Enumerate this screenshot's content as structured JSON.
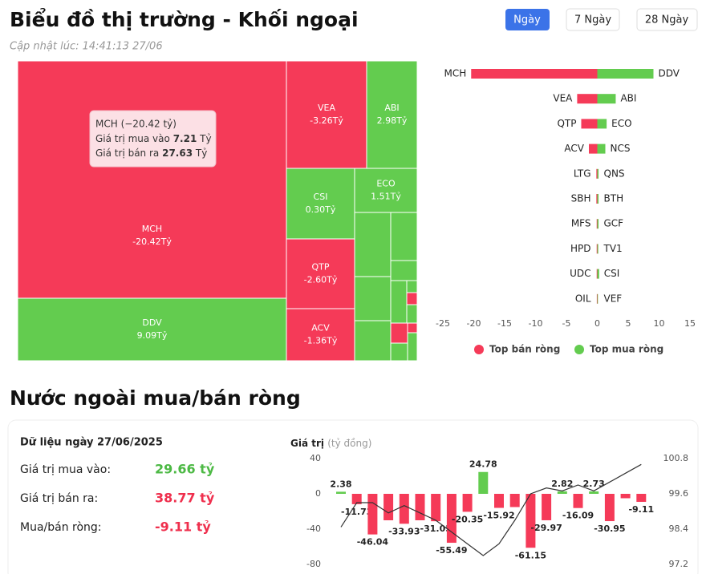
{
  "header": {
    "title": "Biểu đồ thị trường - Khối ngoại",
    "updated": "Cập nhật lúc: 14:41:13 27/06",
    "tabs": [
      "Ngày",
      "7 Ngày",
      "28 Ngày"
    ]
  },
  "chart_data": [
    {
      "type": "treemap",
      "categories": [
        "MCH",
        "DDV",
        "VEA",
        "ABI",
        "CSI",
        "ECO",
        "QTP",
        "ACV"
      ],
      "values": [
        -20.42,
        9.09,
        -3.26,
        2.98,
        0.3,
        1.51,
        -2.6,
        -1.36
      ],
      "value_labels": [
        "-20.42Tỷ",
        "9.09Tỷ",
        "-3.26Tỷ",
        "2.98Tỷ",
        "0.30Tỷ",
        "1.51Tỷ",
        "-2.60Tỷ",
        "-1.36Tỷ"
      ],
      "positive_color": "#63cc4f",
      "negative_color": "#f53a58",
      "tooltip": {
        "title": "MCH (−20.42 tỷ)",
        "rows": [
          {
            "label": "Giá trị mua vào",
            "value": 7.21,
            "unit": "Tỷ"
          },
          {
            "label": "Giá trị bán ra",
            "value": 27.63,
            "unit": "Tỷ"
          }
        ]
      }
    },
    {
      "type": "diverging-bar",
      "xlim": [
        -25,
        15
      ],
      "xticks": [
        -25,
        -20,
        -15,
        -10,
        -5,
        0,
        5,
        10,
        15
      ],
      "series": [
        {
          "name": "Top bán ròng",
          "color": "#f53a58",
          "categories": [
            "MCH",
            "VEA",
            "QTP",
            "ACV",
            "LTG",
            "SBH",
            "MFS",
            "HPD",
            "UDC",
            "OIL"
          ],
          "values": [
            -20.42,
            -3.26,
            -2.6,
            -1.36,
            -0.15,
            -0.15,
            -0.1,
            -0.1,
            -0.1,
            -0.08
          ]
        },
        {
          "name": "Top mua ròng",
          "color": "#63cc4f",
          "categories": [
            "DDV",
            "ABI",
            "ECO",
            "NCS",
            "QNS",
            "BTH",
            "GCF",
            "TV1",
            "CSI",
            "VEF"
          ],
          "values": [
            9.09,
            2.98,
            1.51,
            1.3,
            0.2,
            0.2,
            0.2,
            0.15,
            0.3,
            0.1
          ]
        }
      ]
    },
    {
      "type": "bar-line",
      "title": "Nước ngoài mua/bán ròng",
      "y_label": "Giá trị",
      "y_unit": "(tỷ đồng)",
      "ylim": [
        -80,
        40
      ],
      "yticks": [
        -80,
        -40,
        0,
        40
      ],
      "y2lim": [
        97.2,
        100.8
      ],
      "y2ticks": [
        97.2,
        98.4,
        99.6,
        100.8
      ],
      "categories": [
        null,
        null,
        null,
        null,
        null,
        null,
        null,
        null,
        null,
        null,
        null,
        null,
        null,
        null,
        null,
        null,
        null,
        null,
        null,
        null
      ],
      "series": [
        {
          "type": "bar",
          "positive_color": "#63cc4f",
          "negative_color": "#f53a58",
          "values": [
            2.38,
            -11.73,
            -46.04,
            -30,
            -33.93,
            -30,
            -31.05,
            -55.49,
            -20.35,
            24.78,
            -15.92,
            -15,
            -61.15,
            -29.97,
            2.82,
            -16.09,
            2.73,
            -30.95,
            -5,
            -9.11
          ],
          "value_labels": [
            "2.38",
            "-11.73",
            "-46.04",
            null,
            "-33.93",
            null,
            "-31.05",
            "-55.49",
            "-20.35",
            "24.78",
            "-15.92",
            null,
            "-61.15",
            "-29.97",
            "2.82",
            "-16.09",
            "2.73",
            "-30.95",
            null,
            "-9.11"
          ]
        },
        {
          "type": "line",
          "axis": "y2",
          "color": "#333333",
          "values": [
            98.47,
            99.3,
            99.3,
            98.95,
            99.2,
            98.95,
            98.7,
            98.3,
            97.9,
            97.5,
            97.9,
            98.7,
            99.6,
            99.8,
            99.7,
            99.9,
            99.7,
            100.0,
            100.3,
            100.6
          ]
        }
      ]
    }
  ],
  "summary": {
    "title": "Dữ liệu ngày 27/06/2025",
    "rows": [
      {
        "label": "Giá trị mua vào:",
        "value": "29.66 tỷ"
      },
      {
        "label": "Giá trị bán ra:",
        "value": "38.77 tỷ"
      },
      {
        "label": "Mua/bán ròng:",
        "value": "-9.11 tỷ"
      }
    ]
  }
}
